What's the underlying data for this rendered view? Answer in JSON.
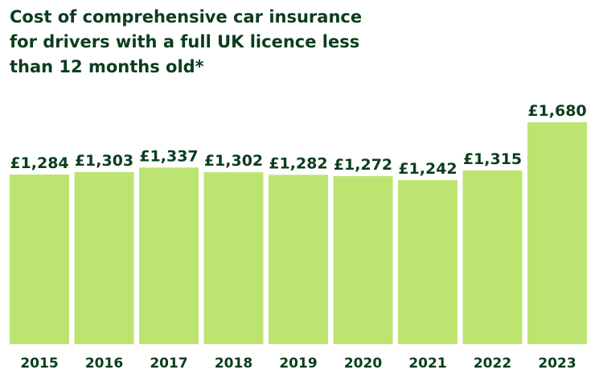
{
  "chart_data": {
    "type": "bar",
    "title": [
      "Cost of comprehensive car insurance",
      "for drivers with a full UK licence less",
      "than 12 months old*"
    ],
    "categories": [
      "2015",
      "2016",
      "2017",
      "2018",
      "2019",
      "2020",
      "2021",
      "2022",
      "2023"
    ],
    "values": [
      1284,
      1303,
      1337,
      1302,
      1282,
      1272,
      1242,
      1315,
      1680
    ],
    "value_labels": [
      "£1,284",
      "£1,303",
      "£1,337",
      "£1,302",
      "£1,282",
      "£1,272",
      "£1,242",
      "£1,315",
      "£1,680"
    ],
    "color": "#bde470"
  }
}
